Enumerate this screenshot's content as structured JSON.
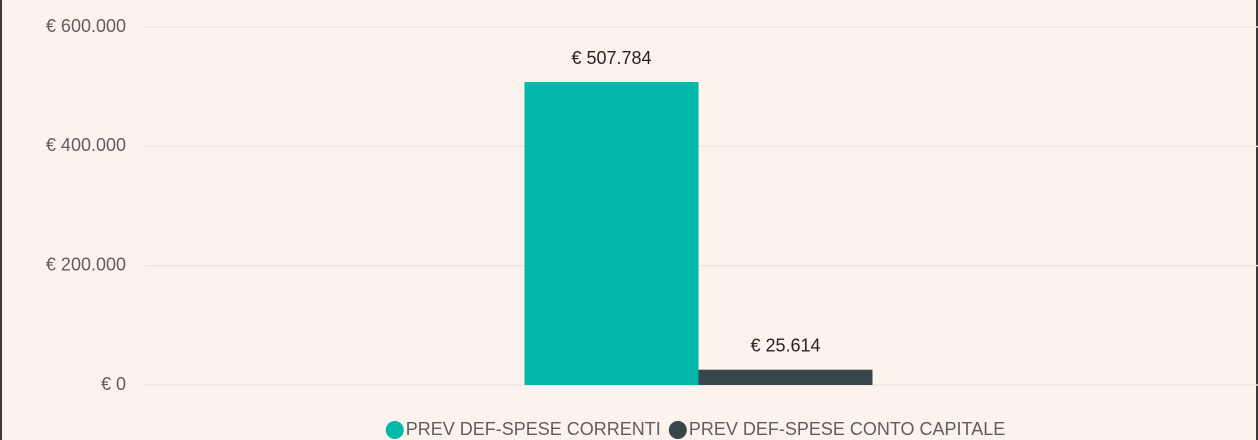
{
  "chart_data": {
    "type": "bar",
    "categories": [
      null
    ],
    "series": [
      {
        "name": "PREV DEF-SPESE CORRENTI",
        "color": "#01b8aa",
        "values": [
          507784
        ],
        "value_labels": [
          "€ 507.784"
        ]
      },
      {
        "name": "PREV DEF-SPESE CONTO CAPITALE",
        "color": "#374649",
        "values": [
          25614
        ],
        "value_labels": [
          "€ 25.614"
        ]
      }
    ],
    "ylim": [
      0,
      600000
    ],
    "yticks": [
      {
        "value": 0,
        "label": "€ 0"
      },
      {
        "value": 200000,
        "label": "€ 200.000"
      },
      {
        "value": 400000,
        "label": "€ 400.000"
      },
      {
        "value": 600000,
        "label": "€ 600.000"
      }
    ],
    "grid": true,
    "legend": "bottom"
  }
}
